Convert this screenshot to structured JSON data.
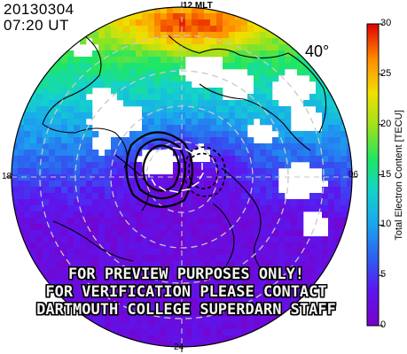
{
  "header": {
    "date": "20130304",
    "time": "07:20 UT"
  },
  "mlt_labels": {
    "top": "12 MLT",
    "bottom": "24",
    "left": "18",
    "right": "06"
  },
  "latitude_label": "40°",
  "watermark": [
    "FOR PREVIEW PURPOSES ONLY!",
    "FOR VERIFICATION PLEASE CONTACT",
    "DARTMOUTH COLLEGE SUPERDARN STAFF"
  ],
  "colorbar": {
    "title": "Total Electron Content [TECU]",
    "min": 0,
    "max": 30,
    "ticks": [
      "0",
      "5",
      "10",
      "15",
      "20",
      "25",
      "30"
    ]
  },
  "colors": {
    "background": "#ffffff",
    "contour": "#000000",
    "grid": "#bbbbbb"
  }
}
